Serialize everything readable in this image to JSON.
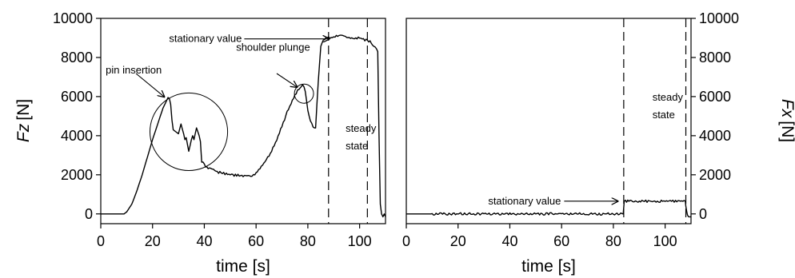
{
  "chart_data": [
    {
      "type": "line",
      "panel": "left",
      "xlabel": "time [s]",
      "ylabel": "Fz [N]",
      "ylabel_var": "Fz",
      "ylabel_unit": "[N]",
      "xlim": [
        0,
        110
      ],
      "ylim": [
        -500,
        10000
      ],
      "xticks": [
        0,
        20,
        40,
        60,
        80,
        100
      ],
      "yticks": [
        0,
        2000,
        4000,
        6000,
        8000,
        10000
      ],
      "yaxis_side": "left",
      "grid": false,
      "series": [
        {
          "x": [
            0,
            9,
            10,
            12,
            14,
            16,
            18,
            20,
            22,
            24,
            26,
            26.5,
            27,
            27.5,
            28,
            29,
            30,
            31,
            32,
            32.5,
            33,
            34,
            35,
            35.5,
            36,
            37,
            38,
            38.5,
            39,
            40,
            42,
            45,
            50,
            55,
            58,
            60,
            62,
            64,
            66,
            68,
            70,
            72,
            74,
            76,
            77,
            78,
            78.5,
            79,
            80,
            81,
            82,
            83,
            84,
            85,
            86,
            87,
            88,
            90,
            92,
            95,
            98,
            100,
            102,
            104,
            105,
            106,
            107,
            107.5,
            108,
            108.5,
            109,
            109.5,
            110
          ],
          "y": [
            0,
            0,
            100,
            500,
            1200,
            2000,
            2900,
            3800,
            4600,
            5400,
            5950,
            5900,
            5600,
            4800,
            4300,
            4200,
            4100,
            4600,
            4100,
            3800,
            3900,
            3200,
            3800,
            4000,
            3800,
            4400,
            4000,
            3700,
            2700,
            2500,
            2300,
            2150,
            2000,
            1950,
            1900,
            2100,
            2400,
            2800,
            3200,
            3800,
            4500,
            5200,
            5800,
            6300,
            6400,
            6600,
            6500,
            6300,
            5300,
            4800,
            4500,
            4400,
            6800,
            8600,
            8900,
            9000,
            9000,
            9050,
            9100,
            9050,
            9000,
            9000,
            8900,
            8800,
            8600,
            8500,
            8300,
            4000,
            500,
            0,
            -150,
            0,
            -150
          ]
        }
      ],
      "vlines": [
        88,
        103
      ],
      "annotations": [
        {
          "text": "pin insertion",
          "point": [
            26,
            5800
          ]
        },
        {
          "text": "shoulder plunge",
          "point": [
            77,
            6300
          ]
        },
        {
          "text": "stationary value",
          "point": [
            88.5,
            8950
          ]
        },
        {
          "text": "steady",
          "point": [
            95.5,
            4200
          ]
        },
        {
          "text": "state",
          "point": [
            95.5,
            3300
          ]
        }
      ],
      "circles": [
        {
          "center": [
            34,
            4200
          ],
          "radius_x": 15
        },
        {
          "center": [
            78.5,
            6150
          ],
          "radius_x": 3.7
        }
      ]
    },
    {
      "type": "line",
      "panel": "right",
      "xlabel": "time [s]",
      "ylabel": "Fx [N]",
      "ylabel_var": "Fx",
      "ylabel_unit": "[N]",
      "xlim": [
        0,
        110
      ],
      "ylim": [
        -500,
        10000
      ],
      "xticks": [
        0,
        20,
        40,
        60,
        80,
        100
      ],
      "yticks": [
        0,
        2000,
        4000,
        6000,
        8000,
        10000
      ],
      "yaxis_side": "right",
      "grid": false,
      "series": [
        {
          "x": [
            0,
            10,
            20,
            30,
            40,
            50,
            60,
            70,
            80,
            83.8,
            84,
            84.2,
            86,
            90,
            95,
            100,
            105,
            107.8,
            108,
            108.3,
            108.6,
            109,
            110
          ],
          "y": [
            0,
            0,
            0,
            0,
            0,
            0,
            0,
            0,
            0,
            0,
            350,
            650,
            650,
            650,
            650,
            650,
            650,
            650,
            400,
            150,
            -50,
            -150,
            -150
          ]
        }
      ],
      "vlines": [
        84,
        108
      ],
      "annotations": [
        {
          "text": "stationary value",
          "point": [
            82,
            650
          ]
        },
        {
          "text": "steady",
          "point": [
            96,
            5800
          ]
        },
        {
          "text": "state",
          "point": [
            96,
            4900
          ]
        }
      ]
    }
  ]
}
